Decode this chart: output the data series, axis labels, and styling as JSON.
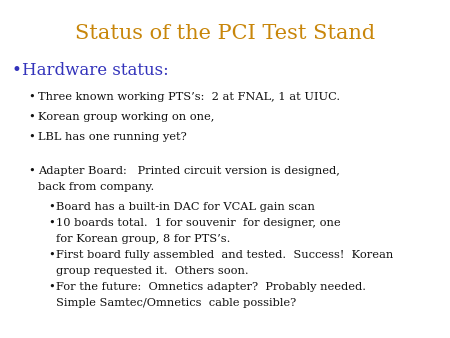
{
  "title": "Status of the PCI Test Stand",
  "title_color": "#C8860A",
  "title_fontsize": 15,
  "background_color": "#ffffff",
  "hw_bullet_color": "#3333BB",
  "hw_bullet_text": "Hardware status:",
  "hw_bullet_fontsize": 12,
  "text_color": "#111111",
  "text_fontsize": 8.2,
  "level1_bullets": [
    "Three known working PTS’s:  2 at FNAL, 1 at UIUC.",
    "Korean group working on one,",
    "LBL has one running yet?"
  ],
  "adapter_line1": "Adapter Board:   Printed circuit version is designed,",
  "adapter_line2": "back from company.",
  "level2_bullets": [
    "Board has a built-in DAC for VCAL gain scan",
    "10 boards total.  1 for souvenir  for designer, one\nfor Korean group, 8 for PTS’s.",
    "First board fully assembled  and tested.  Success!  Korean\ngroup requested it.  Others soon.",
    "For the future:  Omnetics adapter?  Probably needed.\nSimple Samtec/Omnetics  cable possible?"
  ]
}
